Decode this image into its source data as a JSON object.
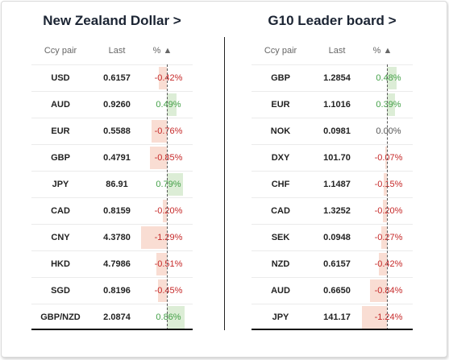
{
  "left_panel": {
    "title": "New Zealand Dollar >",
    "headers": {
      "pair": "Ccy pair",
      "last": "Last",
      "pct": "% ▲"
    },
    "rows": [
      {
        "pair": "USD",
        "last": "0.6157",
        "pct": "-0.42%",
        "value": -0.42
      },
      {
        "pair": "AUD",
        "last": "0.9260",
        "pct": "0.49%",
        "value": 0.49
      },
      {
        "pair": "EUR",
        "last": "0.5588",
        "pct": "-0.76%",
        "value": -0.76
      },
      {
        "pair": "GBP",
        "last": "0.4791",
        "pct": "-0.85%",
        "value": -0.85
      },
      {
        "pair": "JPY",
        "last": "86.91",
        "pct": "0.79%",
        "value": 0.79
      },
      {
        "pair": "CAD",
        "last": "0.8159",
        "pct": "-0.20%",
        "value": -0.2
      },
      {
        "pair": "CNY",
        "last": "4.3780",
        "pct": "-1.29%",
        "value": -1.29
      },
      {
        "pair": "HKD",
        "last": "4.7986",
        "pct": "-0.51%",
        "value": -0.51
      },
      {
        "pair": "SGD",
        "last": "0.8196",
        "pct": "-0.45%",
        "value": -0.45
      },
      {
        "pair": "GBP/NZD",
        "last": "2.0874",
        "pct": "0.86%",
        "value": 0.86
      }
    ]
  },
  "right_panel": {
    "title": "G10 Leader board >",
    "headers": {
      "pair": "Ccy pair",
      "last": "Last",
      "pct": "% ▲"
    },
    "rows": [
      {
        "pair": "GBP",
        "last": "1.2854",
        "pct": "0.48%",
        "value": 0.48
      },
      {
        "pair": "EUR",
        "last": "1.1016",
        "pct": "0.39%",
        "value": 0.39
      },
      {
        "pair": "NOK",
        "last": "0.0981",
        "pct": "0.00%",
        "value": 0.0
      },
      {
        "pair": "DXY",
        "last": "101.70",
        "pct": "-0.07%",
        "value": -0.07
      },
      {
        "pair": "CHF",
        "last": "1.1487",
        "pct": "-0.15%",
        "value": -0.15
      },
      {
        "pair": "CAD",
        "last": "1.3252",
        "pct": "-0.20%",
        "value": -0.2
      },
      {
        "pair": "SEK",
        "last": "0.0948",
        "pct": "-0.27%",
        "value": -0.27
      },
      {
        "pair": "NZD",
        "last": "0.6157",
        "pct": "-0.42%",
        "value": -0.42
      },
      {
        "pair": "AUD",
        "last": "0.6650",
        "pct": "-0.84%",
        "value": -0.84
      },
      {
        "pair": "JPY",
        "last": "141.17",
        "pct": "-1.24%",
        "value": -1.24
      }
    ]
  },
  "colors": {
    "negative_text": "#c62828",
    "positive_text": "#43a047",
    "negative_bar": "#f9ddd3",
    "positive_bar": "#dcedd6"
  }
}
